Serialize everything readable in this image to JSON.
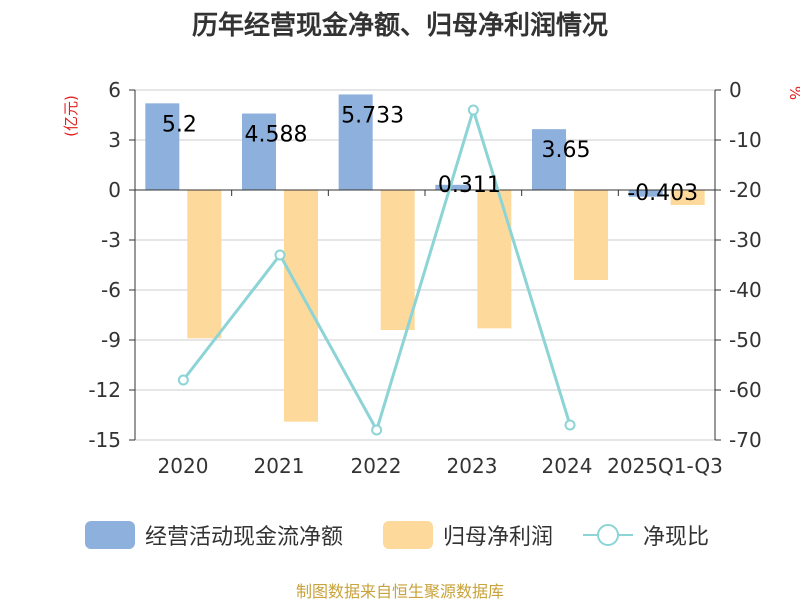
{
  "chart_data": {
    "type": "bar+line",
    "title": "历年经营现金净额、归母净利润情况",
    "categories": [
      "2020",
      "2021",
      "2022",
      "2023",
      "2024",
      "2025Q1-Q3"
    ],
    "series": [
      {
        "name": "经营活动现金流净额",
        "kind": "bar",
        "axis": "left",
        "color": "#8eb0dc",
        "values": [
          5.2,
          4.588,
          5.733,
          0.311,
          3.65,
          -0.403
        ],
        "labels": [
          "5.2",
          "4.588",
          "5.733",
          "0.311",
          "3.65",
          "-0.403"
        ]
      },
      {
        "name": "归母净利润",
        "kind": "bar",
        "axis": "left",
        "color": "#fdd99b",
        "values": [
          -8.9,
          -13.9,
          -8.4,
          -8.3,
          -5.4,
          -0.9
        ]
      },
      {
        "name": "净现比",
        "kind": "line",
        "axis": "right",
        "color": "#8dd4d6",
        "values": [
          -58,
          -33,
          -68,
          -4,
          -67,
          null
        ]
      }
    ],
    "y_left": {
      "unit": "(亿元)",
      "ticks": [
        "6",
        "3",
        "0",
        "-3",
        "-6",
        "-9",
        "-12",
        "-15"
      ],
      "ylim": [
        -15,
        6
      ]
    },
    "y_right": {
      "unit": "%",
      "ticks": [
        "0",
        "-10",
        "-20",
        "-30",
        "-40",
        "-50",
        "-60",
        "-70"
      ],
      "ylim": [
        -70,
        0
      ]
    },
    "unit_color": "#e02020",
    "legend_position": "bottom"
  },
  "footer": {
    "source": "制图数据来自恒生聚源数据库"
  }
}
